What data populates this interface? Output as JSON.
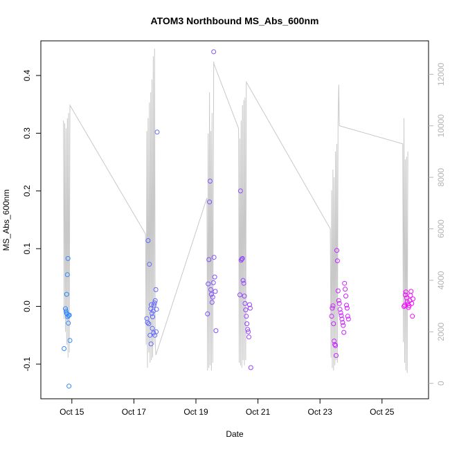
{
  "chart_data": {
    "type": "scatter",
    "title": "ATOM3 Northbound MS_Abs_600nm",
    "xlabel": "Date",
    "ylabel": "MS_Abs_600nm",
    "x_is_date": true,
    "x_ticks": [
      "Oct 15",
      "Oct 17",
      "Oct 19",
      "Oct 21",
      "Oct 23",
      "Oct 25"
    ],
    "xlim": [
      "2018-10-14T00:00",
      "2018-10-26T12:00"
    ],
    "ylim": [
      -0.16,
      0.46
    ],
    "y_ticks": [
      -0.1,
      0.0,
      0.1,
      0.2,
      0.3,
      0.4
    ],
    "y_tick_labels": [
      "-0.1",
      "0.0",
      "0.1",
      "0.2",
      "0.3",
      "0.4"
    ],
    "y2_ticks": [
      0,
      2000,
      4000,
      6000,
      8000,
      10000,
      12000
    ],
    "y2_tick_labels": [
      "0",
      "2000",
      "4000",
      "6000",
      "8000",
      "10000",
      "12000"
    ],
    "y2lim": [
      -600,
      13300
    ],
    "grid": false,
    "series": [
      {
        "color_start": "#1e90ff",
        "color_end": "#ff00ff",
        "points": [
          [
            "2018-10-14T18:00",
            -0.073
          ],
          [
            "2018-10-14T19:00",
            -0.004
          ],
          [
            "2018-10-14T19:30",
            -0.008
          ],
          [
            "2018-10-14T20:00",
            0.021
          ],
          [
            "2018-10-14T20:30",
            0.055
          ],
          [
            "2018-10-14T21:00",
            0.083
          ],
          [
            "2018-10-14T19:45",
            -0.011
          ],
          [
            "2018-10-14T20:15",
            -0.013
          ],
          [
            "2018-10-14T21:30",
            -0.016
          ],
          [
            "2018-10-14T22:00",
            -0.015
          ],
          [
            "2018-10-14T20:45",
            -0.018
          ],
          [
            "2018-10-14T21:15",
            -0.029
          ],
          [
            "2018-10-14T22:30",
            -0.059
          ],
          [
            "2018-10-14T21:45",
            -0.138
          ],
          [
            "2018-10-17T11:00",
            0.114
          ],
          [
            "2018-10-17T12:00",
            0.073
          ],
          [
            "2018-10-17T10:00",
            -0.021
          ],
          [
            "2018-10-17T10:30",
            -0.028
          ],
          [
            "2018-10-17T11:30",
            -0.03
          ],
          [
            "2018-10-17T13:00",
            -0.004
          ],
          [
            "2018-10-17T13:30",
            0.003
          ],
          [
            "2018-10-17T14:00",
            -0.012
          ],
          [
            "2018-10-17T14:30",
            -0.018
          ],
          [
            "2018-10-17T15:00",
            -0.008
          ],
          [
            "2018-10-17T15:30",
            0.002
          ],
          [
            "2018-10-17T16:00",
            0.006
          ],
          [
            "2018-10-17T16:30",
            0.01
          ],
          [
            "2018-10-17T17:00",
            0.029
          ],
          [
            "2018-10-17T17:30",
            -0.005
          ],
          [
            "2018-10-17T12:30",
            -0.05
          ],
          [
            "2018-10-17T13:15",
            -0.065
          ],
          [
            "2018-10-17T14:15",
            -0.038
          ],
          [
            "2018-10-17T15:15",
            -0.046
          ],
          [
            "2018-10-17T16:15",
            -0.05
          ],
          [
            "2018-10-17T17:15",
            -0.044
          ],
          [
            "2018-10-17T18:00",
            0.302
          ],
          [
            "2018-10-19T09:00",
            -0.013
          ],
          [
            "2018-10-19T09:30",
            0.039
          ],
          [
            "2018-10-19T10:00",
            0.081
          ],
          [
            "2018-10-19T10:30",
            0.181
          ],
          [
            "2018-10-19T11:00",
            0.217
          ],
          [
            "2018-10-19T11:30",
            0.029
          ],
          [
            "2018-10-19T12:00",
            0.021
          ],
          [
            "2018-10-19T12:30",
            0.007
          ],
          [
            "2018-10-19T13:00",
            0.016
          ],
          [
            "2018-10-19T13:30",
            0.041
          ],
          [
            "2018-10-19T14:00",
            0.085
          ],
          [
            "2018-10-19T14:30",
            0.051
          ],
          [
            "2018-10-19T15:00",
            0.026
          ],
          [
            "2018-10-19T15:30",
            -0.042
          ],
          [
            "2018-10-19T13:45",
            0.441
          ],
          [
            "2018-10-20T10:00",
            0.02
          ],
          [
            "2018-10-20T10:30",
            0.2
          ],
          [
            "2018-10-20T11:00",
            0.08
          ],
          [
            "2018-10-20T11:30",
            0.082
          ],
          [
            "2018-10-20T12:00",
            0.083
          ],
          [
            "2018-10-20T12:30",
            0.045
          ],
          [
            "2018-10-20T13:00",
            0.04
          ],
          [
            "2018-10-20T13:30",
            0.018
          ],
          [
            "2018-10-20T14:00",
            0.005
          ],
          [
            "2018-10-20T14:30",
            -0.006
          ],
          [
            "2018-10-20T15:00",
            -0.017
          ],
          [
            "2018-10-20T15:30",
            -0.03
          ],
          [
            "2018-10-20T16:00",
            -0.04
          ],
          [
            "2018-10-20T16:30",
            -0.044
          ],
          [
            "2018-10-20T17:00",
            -0.053
          ],
          [
            "2018-10-20T17:30",
            0.003
          ],
          [
            "2018-10-20T18:00",
            -0.003
          ],
          [
            "2018-10-20T18:30",
            -0.106
          ],
          [
            "2018-10-23T09:00",
            -0.017
          ],
          [
            "2018-10-23T09:30",
            -0.003
          ],
          [
            "2018-10-23T10:00",
            0.001
          ],
          [
            "2018-10-23T10:30",
            -0.03
          ],
          [
            "2018-10-23T11:00",
            -0.06
          ],
          [
            "2018-10-23T11:30",
            -0.066
          ],
          [
            "2018-10-23T12:00",
            -0.068
          ],
          [
            "2018-10-23T12:30",
            -0.085
          ],
          [
            "2018-10-23T13:00",
            0.097
          ],
          [
            "2018-10-23T13:30",
            0.079
          ],
          [
            "2018-10-23T14:00",
            0.027
          ],
          [
            "2018-10-23T14:30",
            0.01
          ],
          [
            "2018-10-23T15:00",
            0.005
          ],
          [
            "2018-10-23T15:30",
            -0.005
          ],
          [
            "2018-10-23T16:00",
            -0.011
          ],
          [
            "2018-10-23T16:30",
            -0.016
          ],
          [
            "2018-10-23T17:00",
            -0.022
          ],
          [
            "2018-10-23T17:30",
            -0.028
          ],
          [
            "2018-10-23T18:00",
            -0.033
          ],
          [
            "2018-10-23T18:30",
            -0.045
          ],
          [
            "2018-10-23T19:00",
            0.04
          ],
          [
            "2018-10-23T19:30",
            0.03
          ],
          [
            "2018-10-23T20:00",
            0.018
          ],
          [
            "2018-10-23T20:30",
            0.002
          ],
          [
            "2018-10-23T21:00",
            -0.003
          ],
          [
            "2018-10-23T21:30",
            -0.017
          ],
          [
            "2018-10-23T22:00",
            -0.022
          ],
          [
            "2018-10-25T17:00",
            0.0
          ],
          [
            "2018-10-25T17:30",
            0.002
          ],
          [
            "2018-10-25T18:00",
            0.02
          ],
          [
            "2018-10-25T18:30",
            0.025
          ],
          [
            "2018-10-25T19:00",
            0.015
          ],
          [
            "2018-10-25T19:30",
            0.008
          ],
          [
            "2018-10-25T20:00",
            0.004
          ],
          [
            "2018-10-25T20:30",
            -0.002
          ],
          [
            "2018-10-25T21:00",
            0.001
          ],
          [
            "2018-10-25T21:30",
            0.01
          ],
          [
            "2018-10-25T22:00",
            0.019
          ],
          [
            "2018-10-25T22:30",
            0.026
          ],
          [
            "2018-10-25T23:00",
            0.005
          ],
          [
            "2018-10-25T23:30",
            -0.017
          ],
          [
            "2018-10-26T00:00",
            0.013
          ]
        ]
      },
      {
        "axis": "right",
        "color": "#c8c8c8",
        "line": [
          [
            "2018-10-14T17:30",
            10200
          ],
          [
            "2018-10-14T18:00",
            2500
          ],
          [
            "2018-10-14T18:30",
            10100
          ],
          [
            "2018-10-14T19:00",
            2000
          ],
          [
            "2018-10-14T19:30",
            9900
          ],
          [
            "2018-10-14T20:00",
            1500
          ],
          [
            "2018-10-14T20:30",
            10300
          ],
          [
            "2018-10-14T21:00",
            1000
          ],
          [
            "2018-10-14T21:30",
            10500
          ],
          [
            "2018-10-14T22:00",
            1200
          ],
          [
            "2018-10-14T22:30",
            10800
          ],
          [
            "2018-10-17T09:00",
            5800
          ],
          [
            "2018-10-17T09:30",
            1500
          ],
          [
            "2018-10-17T10:00",
            9800
          ],
          [
            "2018-10-17T10:30",
            600
          ],
          [
            "2018-10-17T11:00",
            10300
          ],
          [
            "2018-10-17T11:30",
            1200
          ],
          [
            "2018-10-17T12:00",
            10900
          ],
          [
            "2018-10-17T12:30",
            800
          ],
          [
            "2018-10-17T13:00",
            11300
          ],
          [
            "2018-10-17T13:30",
            900
          ],
          [
            "2018-10-17T14:00",
            11800
          ],
          [
            "2018-10-17T14:30",
            1000
          ],
          [
            "2018-10-17T15:00",
            12700
          ],
          [
            "2018-10-17T15:30",
            1500
          ],
          [
            "2018-10-17T16:00",
            13000
          ],
          [
            "2018-10-17T16:30",
            1700
          ],
          [
            "2018-10-17T17:00",
            1100
          ],
          [
            "2018-10-19T08:30",
            7200
          ],
          [
            "2018-10-19T09:00",
            500
          ],
          [
            "2018-10-19T09:30",
            9700
          ],
          [
            "2018-10-19T10:00",
            600
          ],
          [
            "2018-10-19T10:30",
            11300
          ],
          [
            "2018-10-19T11:00",
            700
          ],
          [
            "2018-10-19T11:30",
            9800
          ],
          [
            "2018-10-19T12:00",
            500
          ],
          [
            "2018-10-19T12:30",
            10500
          ],
          [
            "2018-10-19T13:00",
            800
          ],
          [
            "2018-10-19T13:45",
            12500
          ],
          [
            "2018-10-19T14:00",
            12400
          ],
          [
            "2018-10-20T09:00",
            9900
          ],
          [
            "2018-10-20T09:30",
            800
          ],
          [
            "2018-10-20T10:00",
            9500
          ],
          [
            "2018-10-20T10:30",
            700
          ],
          [
            "2018-10-20T11:00",
            10200
          ],
          [
            "2018-10-20T11:30",
            600
          ],
          [
            "2018-10-20T12:00",
            10800
          ],
          [
            "2018-10-20T12:30",
            900
          ],
          [
            "2018-10-20T13:00",
            11000
          ],
          [
            "2018-10-20T13:30",
            700
          ],
          [
            "2018-10-20T14:00",
            11100
          ],
          [
            "2018-10-20T14:30",
            900
          ],
          [
            "2018-10-20T15:00",
            11700
          ],
          [
            "2018-10-23T08:00",
            6000
          ],
          [
            "2018-10-23T08:30",
            1000
          ],
          [
            "2018-10-23T09:00",
            7500
          ],
          [
            "2018-10-23T09:30",
            600
          ],
          [
            "2018-10-23T10:00",
            8300
          ],
          [
            "2018-10-23T10:30",
            500
          ],
          [
            "2018-10-23T11:00",
            8000
          ],
          [
            "2018-10-23T11:30",
            700
          ],
          [
            "2018-10-23T12:00",
            9000
          ],
          [
            "2018-10-23T12:30",
            900
          ],
          [
            "2018-10-23T13:00",
            9300
          ],
          [
            "2018-10-23T13:30",
            800
          ],
          [
            "2018-10-23T14:00",
            10100
          ],
          [
            "2018-10-23T14:30",
            11600
          ],
          [
            "2018-10-23T15:00",
            10000
          ],
          [
            "2018-10-25T16:00",
            9300
          ],
          [
            "2018-10-25T16:30",
            1600
          ],
          [
            "2018-10-25T17:00",
            10300
          ],
          [
            "2018-10-25T17:30",
            800
          ],
          [
            "2018-10-25T18:00",
            8700
          ],
          [
            "2018-10-25T18:30",
            500
          ],
          [
            "2018-10-25T19:00",
            8800
          ],
          [
            "2018-10-25T19:30",
            400
          ],
          [
            "2018-10-25T20:00",
            9000
          ]
        ]
      }
    ]
  }
}
